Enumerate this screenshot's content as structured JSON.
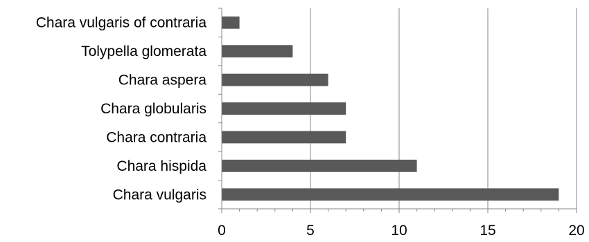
{
  "chart_data": {
    "type": "bar",
    "orientation": "horizontal",
    "categories": [
      "Chara vulgaris of contraria",
      "Tolypella glomerata",
      "Chara aspera",
      "Chara globularis",
      "Chara contraria",
      "Chara hispida",
      "Chara vulgaris"
    ],
    "values": [
      1,
      4,
      6,
      7,
      7,
      11,
      19
    ],
    "xlim": [
      0,
      20
    ],
    "xticks": [
      0,
      5,
      10,
      15,
      20
    ],
    "grid": "vertical",
    "legend": "none",
    "title": "",
    "xlabel": "",
    "ylabel": "",
    "colors": {
      "bar": "#595959",
      "grid": "#868686",
      "axis": "#868686"
    }
  }
}
